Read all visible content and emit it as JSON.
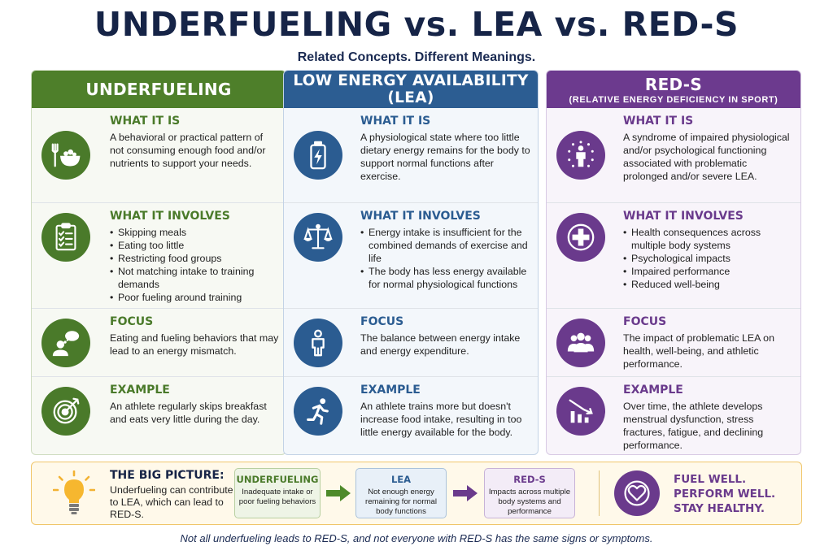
{
  "title": "UNDERFUELING vs. LEA vs. RED-S",
  "subtitle": "Related Concepts. Different Meanings.",
  "colors": {
    "green": "#4e7f2a",
    "blue": "#2c5d92",
    "purple": "#6c3a8e",
    "navy": "#162447",
    "gold": "#f0c66a"
  },
  "columns": [
    {
      "title": "UNDERFUELING",
      "subtitle": "",
      "sections": [
        {
          "icon": "fork-bowl-icon",
          "title": "WHAT IT IS",
          "body": "A behavioral or practical pattern of not consuming enough food and/or nutrients to support your needs."
        },
        {
          "icon": "checklist-icon",
          "title": "WHAT IT INVOLVES",
          "items": [
            "Skipping meals",
            "Eating too little",
            "Restricting food groups",
            "Not matching intake to training demands",
            "Poor fueling around training"
          ]
        },
        {
          "icon": "thinking-person-icon",
          "title": "FOCUS",
          "body": "Eating and fueling behaviors that may lead to an energy mismatch."
        },
        {
          "icon": "target-icon",
          "title": "EXAMPLE",
          "body": "An athlete regularly skips breakfast and eats very little during the day."
        }
      ]
    },
    {
      "title": "LOW ENERGY AVAILABILITY (LEA)",
      "subtitle": "",
      "sections": [
        {
          "icon": "battery-icon",
          "title": "WHAT IT IS",
          "body": "A physiological state where too little dietary energy remains for the body to support normal functions after exercise."
        },
        {
          "icon": "scale-icon",
          "title": "WHAT IT INVOLVES",
          "items": [
            "Energy intake is insufficient for the combined demands of exercise and life",
            "The body has less energy available for normal physiological functions"
          ]
        },
        {
          "icon": "person-icon",
          "title": "FOCUS",
          "body": "The balance between energy intake and energy expenditure."
        },
        {
          "icon": "runner-icon",
          "title": "EXAMPLE",
          "body": "An athlete trains more but doesn't increase food intake, resulting in too little energy available for the body."
        }
      ]
    },
    {
      "title": "RED-S",
      "subtitle": "(RELATIVE ENERGY DEFICIENCY IN SPORT)",
      "sections": [
        {
          "icon": "body-systems-icon",
          "title": "WHAT IT IS",
          "body": "A syndrome of impaired physiological and/or psychological functioning associated with problematic prolonged and/or severe LEA."
        },
        {
          "icon": "medical-cross-icon",
          "title": "WHAT IT INVOLVES",
          "items": [
            "Health consequences across multiple body systems",
            "Psychological impacts",
            "Impaired performance",
            "Reduced well-being"
          ]
        },
        {
          "icon": "group-icon",
          "title": "FOCUS",
          "body": "The impact of problematic LEA on health, well-being, and athletic performance."
        },
        {
          "icon": "declining-chart-icon",
          "title": "EXAMPLE",
          "body": "Over time, the athlete develops menstrual dysfunction, stress fractures, fatigue, and declining performance."
        }
      ]
    }
  ],
  "big_picture": {
    "icon": "lightbulb-icon",
    "title": "THE BIG PICTURE:",
    "body": "Underfueling can contribute to LEA, which can lead to RED-S.",
    "flow": [
      {
        "title": "UNDERFUELING",
        "body": "Inadequate intake or poor fueling behaviors"
      },
      {
        "title": "LEA",
        "body": "Not enough energy remaining for normal body functions"
      },
      {
        "title": "RED-S",
        "body": "Impacts across multiple body systems and performance"
      }
    ],
    "slogan": [
      "FUEL WELL.",
      "PERFORM WELL.",
      "STAY HEALTHY."
    ]
  },
  "footnote": "Not all underfueling leads to RED-S, and not everyone with RED-S has the same signs or symptoms."
}
